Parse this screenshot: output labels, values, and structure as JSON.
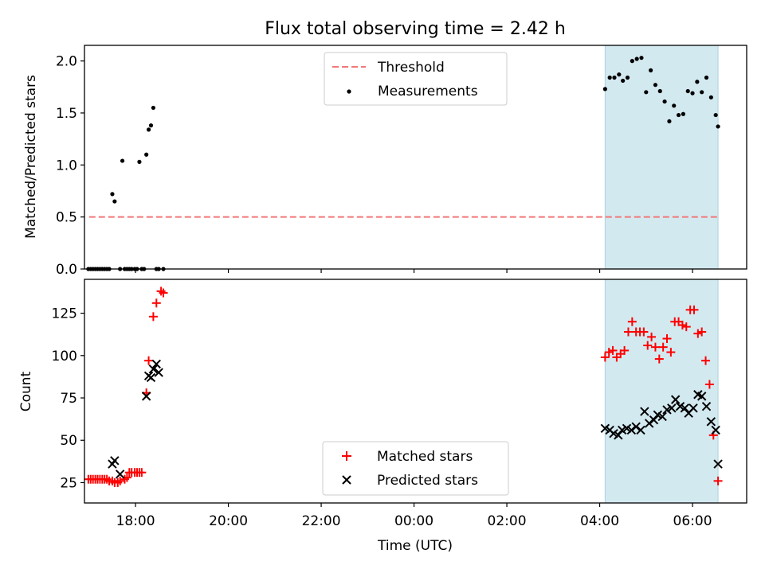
{
  "figure": {
    "title": "Flux total observing time = 2.42 h",
    "xlabel": "Time (UTC)"
  },
  "chart_data": [
    {
      "type": "scatter",
      "panel": "top",
      "ylabel": "Matched/Predicted stars",
      "xlim": [
        "16:54",
        "07:10"
      ],
      "ylim": [
        0,
        2.15
      ],
      "yticks": [
        "0.0",
        "0.5",
        "1.0",
        "1.5",
        "2.0"
      ],
      "shaded_interval": [
        "04:07",
        "06:33"
      ],
      "shade_color": "#d3e9f0",
      "legend_position": "top-center",
      "threshold": {
        "name": "Threshold",
        "value": 0.5,
        "x_range": [
          "17:00",
          "06:33"
        ],
        "color": "#f27777",
        "style": "dashed"
      },
      "series": [
        {
          "name": "Measurements",
          "color": "#000000",
          "marker": "dot",
          "x": [
            "16:59",
            "17:02",
            "17:05",
            "17:08",
            "17:11",
            "17:14",
            "17:17",
            "17:20",
            "17:23",
            "17:26",
            "17:30",
            "17:33",
            "17:40",
            "17:43",
            "17:46",
            "17:49",
            "17:52",
            "17:55",
            "17:59",
            "18:02",
            "18:05",
            "18:08",
            "18:11",
            "18:14",
            "18:17",
            "18:20",
            "18:23",
            "18:27",
            "18:30",
            "18:36",
            "04:07",
            "04:13",
            "04:19",
            "04:25",
            "04:30",
            "04:36",
            "04:42",
            "04:48",
            "04:54",
            "05:00",
            "05:06",
            "05:12",
            "05:18",
            "05:24",
            "05:30",
            "05:36",
            "05:42",
            "05:48",
            "05:54",
            "06:00",
            "06:06",
            "06:12",
            "06:18",
            "06:24",
            "06:30",
            "06:33"
          ],
          "y": [
            0,
            0,
            0,
            0,
            0,
            0,
            0,
            0,
            0,
            0,
            0.72,
            0.65,
            0,
            1.04,
            0,
            0,
            0,
            0,
            0,
            0,
            1.03,
            0,
            0,
            1.1,
            1.34,
            1.38,
            1.55,
            0,
            0,
            0,
            1.73,
            1.84,
            1.84,
            1.87,
            1.81,
            1.84,
            2.0,
            2.02,
            2.03,
            1.7,
            1.91,
            1.77,
            1.71,
            1.61,
            1.42,
            1.57,
            1.48,
            1.49,
            1.71,
            1.69,
            1.8,
            1.7,
            1.84,
            1.65,
            1.48,
            1.37
          ]
        }
      ]
    },
    {
      "type": "scatter",
      "panel": "bottom",
      "ylabel": "Count",
      "xlim": [
        "16:54",
        "07:10"
      ],
      "ylim": [
        13,
        145
      ],
      "yticks": [
        "25",
        "50",
        "75",
        "100",
        "125"
      ],
      "xticks": [
        "18:00",
        "20:00",
        "22:00",
        "00:00",
        "02:00",
        "04:00",
        "06:00"
      ],
      "shaded_interval": [
        "04:07",
        "06:33"
      ],
      "shade_color": "#d3e9f0",
      "legend_position": "bottom-center",
      "series": [
        {
          "name": "Matched stars",
          "color": "#ff0000",
          "marker": "plus",
          "x": [
            "16:59",
            "17:02",
            "17:05",
            "17:08",
            "17:11",
            "17:14",
            "17:17",
            "17:20",
            "17:23",
            "17:26",
            "17:30",
            "17:33",
            "17:37",
            "17:40",
            "17:46",
            "17:49",
            "17:52",
            "17:55",
            "17:59",
            "18:02",
            "18:05",
            "18:08",
            "18:14",
            "18:17",
            "18:23",
            "18:27",
            "18:33",
            "18:36",
            "04:07",
            "04:12",
            "04:17",
            "04:22",
            "04:27",
            "04:32",
            "04:37",
            "04:42",
            "04:47",
            "04:52",
            "04:57",
            "05:02",
            "05:07",
            "05:12",
            "05:17",
            "05:22",
            "05:27",
            "05:32",
            "05:37",
            "05:42",
            "05:47",
            "05:52",
            "05:57",
            "06:02",
            "06:07",
            "06:12",
            "06:17",
            "06:22",
            "06:27",
            "06:33"
          ],
          "y": [
            27,
            27,
            27,
            27,
            27,
            27,
            27,
            27,
            27,
            26,
            26,
            25,
            25,
            26,
            27,
            28,
            31,
            31,
            31,
            31,
            31,
            31,
            78,
            97,
            123,
            131,
            138,
            137,
            99,
            102,
            103,
            99,
            101,
            103,
            114,
            120,
            114,
            114,
            114,
            106,
            111,
            105,
            98,
            105,
            110,
            102,
            120,
            120,
            118,
            117,
            127,
            127,
            113,
            114,
            97,
            83,
            53,
            26
          ]
        },
        {
          "name": "Predicted stars",
          "color": "#000000",
          "marker": "x",
          "x": [
            "17:30",
            "17:33",
            "17:40",
            "18:14",
            "18:17",
            "18:20",
            "18:23",
            "18:27",
            "18:30",
            "04:07",
            "04:13",
            "04:18",
            "04:24",
            "04:29",
            "04:35",
            "04:41",
            "04:47",
            "04:53",
            "04:58",
            "05:04",
            "05:10",
            "05:15",
            "05:21",
            "05:27",
            "05:33",
            "05:38",
            "05:44",
            "05:50",
            "05:55",
            "06:01",
            "06:07",
            "06:12",
            "06:18",
            "06:24",
            "06:30",
            "06:33"
          ],
          "y": [
            36,
            38,
            30,
            76,
            88,
            87,
            92,
            95,
            90,
            57,
            56,
            54,
            53,
            56,
            57,
            56,
            58,
            56,
            67,
            60,
            62,
            65,
            64,
            68,
            69,
            74,
            70,
            69,
            66,
            69,
            77,
            76,
            70,
            61,
            56,
            36
          ]
        }
      ]
    }
  ]
}
